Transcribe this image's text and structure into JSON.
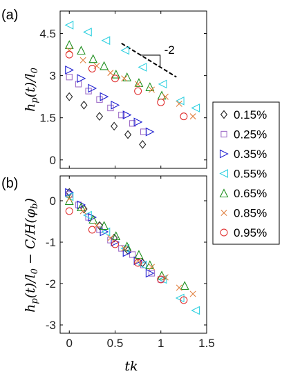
{
  "chart_data": [
    {
      "type": "scatter",
      "panel_label": "(a)",
      "ylabel": "h_p(t)/l_0",
      "ylabel_parts": [
        "h",
        "p",
        "(t)/l",
        "0"
      ],
      "xlabel": "",
      "xlim": [
        -0.1,
        1.5
      ],
      "ylim": [
        -0.3,
        5.3
      ],
      "yticks": [
        0,
        1.5,
        3,
        4.5
      ],
      "ytick_labels": [
        "0",
        "1.5",
        "3",
        "4.5"
      ],
      "xticks": [
        0,
        0.5,
        1,
        1.5
      ],
      "slope_annotation": {
        "label": "-2",
        "line": [
          [
            0.57,
            4.15
          ],
          [
            1.17,
            2.95
          ]
        ]
      },
      "series": [
        {
          "name": "0.15%",
          "marker": "diamond",
          "color": "#222222",
          "x": [
            0.0,
            0.16,
            0.33,
            0.49,
            0.64,
            0.8
          ],
          "y": [
            2.25,
            1.95,
            1.55,
            1.2,
            0.9,
            0.55
          ]
        },
        {
          "name": "0.25%",
          "marker": "square",
          "color": "#a070c8",
          "x": [
            0.0,
            0.1,
            0.21,
            0.33,
            0.45,
            0.57,
            0.69,
            0.81
          ],
          "y": [
            2.95,
            2.7,
            2.45,
            2.15,
            1.85,
            1.6,
            1.3,
            1.0
          ]
        },
        {
          "name": "0.35%",
          "marker": "triangle-right",
          "color": "#2020d0",
          "x": [
            0.0,
            0.13,
            0.25,
            0.38,
            0.5,
            0.63,
            0.75,
            0.88
          ],
          "y": [
            3.2,
            2.9,
            2.55,
            2.25,
            1.95,
            1.6,
            1.35,
            1.0
          ]
        },
        {
          "name": "0.55%",
          "marker": "triangle-left",
          "color": "#30d0e0",
          "x": [
            0.0,
            0.2,
            0.4,
            0.61,
            0.8,
            1.02,
            1.21,
            1.38
          ],
          "y": [
            4.8,
            4.55,
            4.25,
            3.9,
            3.3,
            2.7,
            2.1,
            1.85
          ]
        },
        {
          "name": "0.65%",
          "marker": "triangle-up",
          "color": "#209020",
          "x": [
            0.0,
            0.13,
            0.26,
            0.38,
            0.51,
            0.63,
            0.76,
            0.88,
            1.01
          ],
          "y": [
            4.1,
            3.9,
            3.6,
            3.35,
            3.05,
            2.95,
            2.75,
            2.6,
            2.3
          ]
        },
        {
          "name": "0.85%",
          "marker": "x",
          "color": "#e08040",
          "x": [
            0.0,
            0.15,
            0.3,
            0.45,
            0.6,
            0.75,
            0.9,
            1.05,
            1.2,
            1.35
          ],
          "y": [
            3.9,
            3.55,
            3.35,
            3.1,
            2.9,
            2.7,
            2.5,
            2.25,
            2.0,
            1.55
          ]
        },
        {
          "name": "0.95%",
          "marker": "circle",
          "color": "#e03030",
          "x": [
            0.0,
            0.25,
            0.5,
            0.75,
            1.0,
            1.25
          ],
          "y": [
            3.75,
            3.25,
            2.9,
            2.45,
            2.05,
            1.55
          ]
        }
      ]
    },
    {
      "type": "scatter",
      "panel_label": "(b)",
      "xlabel": "tk",
      "ylabel": "h_p(t)/l_0 - C/H(φ_b)",
      "ylabel_parts": [
        "h",
        "p",
        "(t)/l",
        "0",
        " − C/H(φ",
        "b",
        ")"
      ],
      "xlim": [
        -0.1,
        1.5
      ],
      "ylim": [
        -3.2,
        0.6
      ],
      "yticks": [
        -3,
        -2,
        -1,
        0
      ],
      "ytick_labels": [
        "-3",
        "-2",
        "-1",
        "0"
      ],
      "xticks": [
        0,
        0.5,
        1,
        1.5
      ],
      "xtick_labels": [
        "0",
        "0.5",
        "1",
        "1.5"
      ],
      "series": [
        {
          "name": "0.15%",
          "marker": "diamond",
          "color": "#222222",
          "x": [
            0.0,
            0.16,
            0.33,
            0.49,
            0.64,
            0.8
          ],
          "y": [
            0.2,
            -0.2,
            -0.6,
            -0.9,
            -1.2,
            -1.5
          ]
        },
        {
          "name": "0.25%",
          "marker": "square",
          "color": "#a070c8",
          "x": [
            0.0,
            0.1,
            0.21,
            0.33,
            0.45,
            0.57,
            0.69,
            0.81,
            0.9,
            1.0
          ],
          "y": [
            0.15,
            -0.1,
            -0.4,
            -0.7,
            -0.95,
            -1.15,
            -1.3,
            -1.55,
            -1.75,
            -1.9
          ]
        },
        {
          "name": "0.35%",
          "marker": "triangle-right",
          "color": "#2020d0",
          "x": [
            0.0,
            0.13,
            0.25,
            0.38,
            0.5,
            0.63,
            0.75,
            0.88
          ],
          "y": [
            0.2,
            -0.1,
            -0.4,
            -0.75,
            -1.0,
            -1.25,
            -1.45,
            -1.75
          ]
        },
        {
          "name": "0.55%",
          "marker": "triangle-left",
          "color": "#30d0e0",
          "x": [
            0.0,
            0.2,
            0.4,
            0.61,
            0.8,
            1.02,
            1.21,
            1.38
          ],
          "y": [
            0.1,
            -0.35,
            -0.75,
            -1.15,
            -1.55,
            -1.9,
            -2.35,
            -2.65
          ]
        },
        {
          "name": "0.65%",
          "marker": "triangle-up",
          "color": "#209020",
          "x": [
            0.0,
            0.13,
            0.26,
            0.38,
            0.51,
            0.63,
            0.76,
            0.88,
            1.01,
            1.26
          ],
          "y": [
            0.0,
            -0.15,
            -0.45,
            -0.6,
            -0.85,
            -1.1,
            -1.3,
            -1.55,
            -1.8,
            -2.05
          ]
        },
        {
          "name": "0.85%",
          "marker": "x",
          "color": "#e08040",
          "x": [
            0.0,
            0.15,
            0.3,
            0.45,
            0.6,
            0.75,
            0.9,
            1.05,
            1.2,
            1.35
          ],
          "y": [
            0.05,
            -0.25,
            -0.6,
            -0.9,
            -1.15,
            -1.45,
            -1.6,
            -1.85,
            -2.1,
            -2.25
          ]
        },
        {
          "name": "0.95%",
          "marker": "circle",
          "color": "#e03030",
          "x": [
            0.0,
            0.25,
            0.5,
            0.75,
            1.0,
            1.25
          ],
          "y": [
            -0.25,
            -0.7,
            -1.05,
            -1.5,
            -1.9,
            -2.4
          ]
        }
      ]
    }
  ],
  "legend": {
    "entries": [
      {
        "label": "0.15%",
        "marker": "diamond",
        "color": "#222222"
      },
      {
        "label": "0.25%",
        "marker": "square",
        "color": "#a070c8"
      },
      {
        "label": "0.35%",
        "marker": "triangle-right",
        "color": "#2020d0"
      },
      {
        "label": "0.55%",
        "marker": "triangle-left",
        "color": "#30d0e0"
      },
      {
        "label": "0.65%",
        "marker": "triangle-up",
        "color": "#209020"
      },
      {
        "label": "0.85%",
        "marker": "x",
        "color": "#e08040"
      },
      {
        "label": "0.95%",
        "marker": "circle",
        "color": "#e03030"
      }
    ]
  }
}
